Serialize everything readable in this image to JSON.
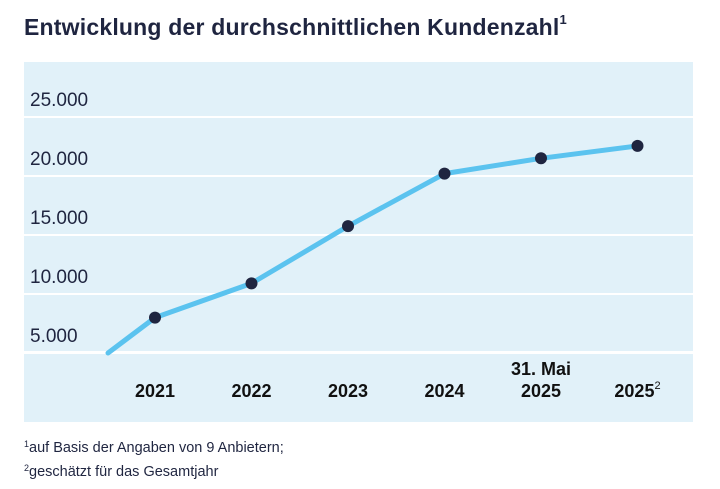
{
  "header": {
    "title": "Entwicklung der durchschnittlichen Kundenzahl",
    "title_sup": "1"
  },
  "footnotes": [
    {
      "marker": "1",
      "text": "auf Basis der Angaben von 9 Anbietern;"
    },
    {
      "marker": "2",
      "text": "geschätzt für das Gesamtjahr"
    }
  ],
  "chart_data": {
    "type": "line",
    "title": "Entwicklung der durchschnittlichen Kundenzahl",
    "y_ticks": [
      "25.000",
      "20.000",
      "15.000",
      "10.000",
      "5.000"
    ],
    "y_tick_values": [
      25000,
      20000,
      15000,
      10000,
      5000
    ],
    "ylim": [
      5000,
      25000
    ],
    "categories": [
      {
        "label": "2021",
        "pre": "",
        "sup": ""
      },
      {
        "label": "2022",
        "pre": "",
        "sup": ""
      },
      {
        "label": "2023",
        "pre": "",
        "sup": ""
      },
      {
        "label": "2024",
        "pre": "",
        "sup": ""
      },
      {
        "label": "2025",
        "pre": "31. Mai",
        "sup": ""
      },
      {
        "label": "2025",
        "pre": "",
        "sup": "2"
      }
    ],
    "series": [
      {
        "values": [
          8000,
          10900,
          15750,
          20200,
          21500,
          22550
        ]
      }
    ],
    "line_start_value": 5000,
    "grid": true,
    "colors": {
      "line": "#5bc3ef",
      "marker": "#1f2540",
      "background": "#e1f1f9",
      "grid": "#ffffff"
    }
  }
}
